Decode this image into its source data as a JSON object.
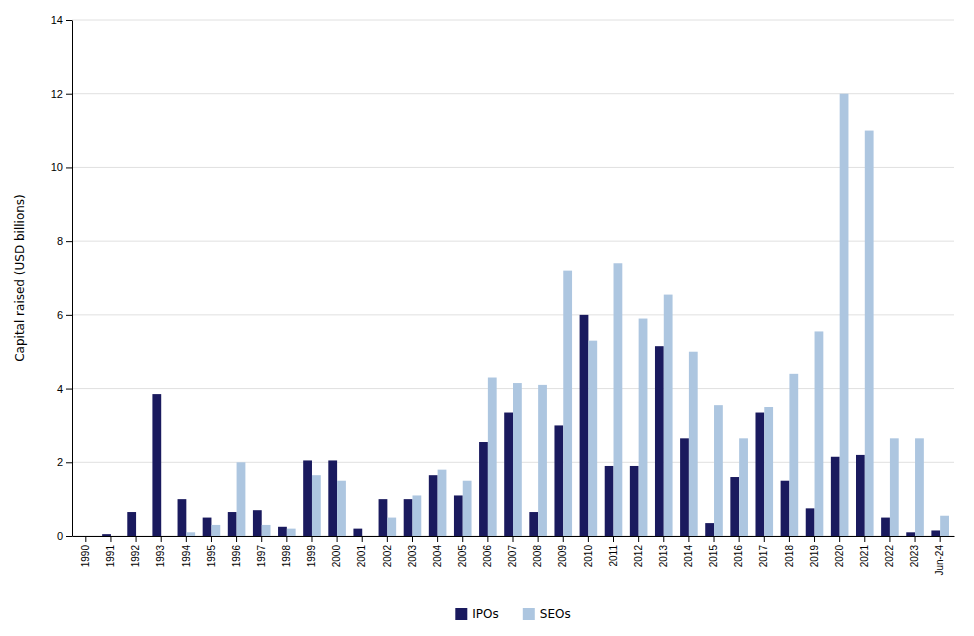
{
  "chart_data": {
    "type": "bar",
    "categories": [
      "1990",
      "1991",
      "1992",
      "1993",
      "1994",
      "1995",
      "1996",
      "1997",
      "1998",
      "1999",
      "2000",
      "2001",
      "2002",
      "2003",
      "2004",
      "2005",
      "2006",
      "2007",
      "2008",
      "2009",
      "2010",
      "2011",
      "2012",
      "2013",
      "2014",
      "2015",
      "2016",
      "2017",
      "2018",
      "2019",
      "2020",
      "2021",
      "2022",
      "2023",
      "Jun-24"
    ],
    "series": [
      {
        "name": "IPOs",
        "color": "#1a1a5e",
        "values": [
          0.0,
          0.05,
          0.65,
          3.85,
          1.0,
          0.5,
          0.65,
          0.7,
          0.25,
          2.05,
          2.05,
          0.2,
          1.0,
          1.0,
          1.65,
          1.1,
          2.55,
          3.35,
          0.65,
          3.0,
          6.0,
          1.9,
          1.9,
          5.15,
          2.65,
          0.35,
          1.6,
          3.35,
          1.5,
          0.75,
          2.15,
          2.2,
          0.5,
          0.1,
          0.15
        ]
      },
      {
        "name": "SEOs",
        "color": "#adc6e0",
        "values": [
          0.0,
          0.0,
          0.0,
          0.0,
          0.1,
          0.3,
          2.0,
          0.3,
          0.2,
          1.65,
          1.5,
          0.0,
          0.5,
          1.1,
          1.8,
          1.5,
          4.3,
          4.15,
          4.1,
          7.2,
          5.3,
          7.4,
          5.9,
          6.55,
          5.0,
          3.55,
          2.65,
          3.5,
          4.4,
          5.55,
          12.0,
          11.0,
          2.65,
          2.65,
          0.55
        ]
      }
    ],
    "ylabel": "Capital raised (USD billions)",
    "ylim": [
      0,
      14
    ],
    "yticks": [
      0,
      2,
      4,
      6,
      8,
      10,
      12,
      14
    ],
    "grid": true,
    "legend": "bottom"
  }
}
